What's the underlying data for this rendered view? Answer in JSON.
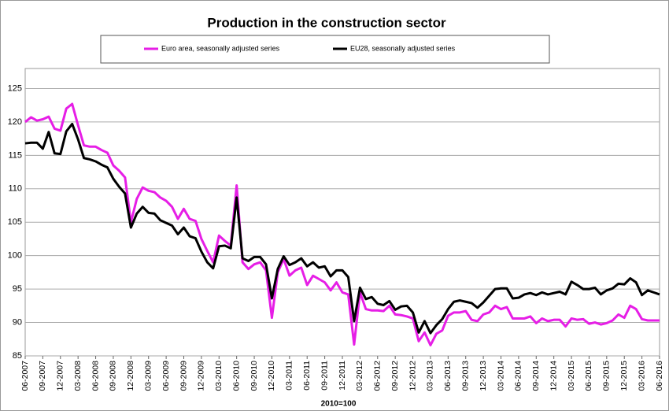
{
  "chart_data": {
    "type": "line",
    "title": "Production in the construction sector",
    "x_label": "2010=100",
    "categories": [
      "06-2007",
      null,
      null,
      "09-2007",
      null,
      null,
      "12-2007",
      null,
      null,
      "03-2008",
      null,
      null,
      "06-2008",
      null,
      null,
      "09-2008",
      null,
      null,
      "12-2008",
      null,
      null,
      "03-2009",
      null,
      null,
      "06-2009",
      null,
      null,
      "09-2009",
      null,
      null,
      "12-2009",
      null,
      null,
      "03-2010",
      null,
      null,
      "06-2010",
      null,
      null,
      "09-2010",
      null,
      null,
      "12-2010",
      null,
      null,
      "03-2011",
      null,
      null,
      "06-2011",
      null,
      null,
      "09-2011",
      null,
      null,
      "12-2011",
      null,
      null,
      "03-2012",
      null,
      null,
      "06-2012",
      null,
      null,
      "09-2012",
      null,
      null,
      "12-2012",
      null,
      null,
      "03-2013",
      null,
      null,
      "06-2013",
      null,
      null,
      "09-2013",
      null,
      null,
      "12-2013",
      null,
      null,
      "03-2014",
      null,
      null,
      "06-2014",
      null,
      null,
      "09-2014",
      null,
      null,
      "12-2014",
      null,
      null,
      "03-2015",
      null,
      null,
      "06-2015",
      null,
      null,
      "09-2015",
      null,
      null,
      "12-2015",
      null,
      null,
      "03-2016",
      null,
      null,
      "06-2016"
    ],
    "series": [
      {
        "name": "Euro area, seasonally adjusted series",
        "color": "#e61ee6",
        "values": [
          120.0,
          120.7,
          120.2,
          120.4,
          120.8,
          119.0,
          118.7,
          122.0,
          122.7,
          119.5,
          116.5,
          116.3,
          116.3,
          115.8,
          115.4,
          113.5,
          112.7,
          111.7,
          105.0,
          108.5,
          110.2,
          109.7,
          109.5,
          108.7,
          108.2,
          107.3,
          105.5,
          107.0,
          105.5,
          105.2,
          102.5,
          100.7,
          99.0,
          103.0,
          102.2,
          101.5,
          110.5,
          99.0,
          98.0,
          98.7,
          99.0,
          97.8,
          90.7,
          97.5,
          99.5,
          97.0,
          97.8,
          98.2,
          95.6,
          97.0,
          96.5,
          96.0,
          94.8,
          96.0,
          94.5,
          94.2,
          86.7,
          94.5,
          92.0,
          91.8,
          91.8,
          91.7,
          92.5,
          91.2,
          91.1,
          90.9,
          90.6,
          87.2,
          88.5,
          86.6,
          88.3,
          88.8,
          91.0,
          91.5,
          91.5,
          91.7,
          90.4,
          90.2,
          91.2,
          91.5,
          92.5,
          92.0,
          92.3,
          90.6,
          90.6,
          90.6,
          90.9,
          89.9,
          90.6,
          90.2,
          90.4,
          90.4,
          89.4,
          90.6,
          90.4,
          90.5,
          89.8,
          90.0,
          89.7,
          89.9,
          90.3,
          91.2,
          90.7,
          92.5,
          92.0,
          90.5,
          90.3,
          90.3,
          90.3
        ]
      },
      {
        "name": "EU28, seasonally adjusted series",
        "color": "#000000",
        "values": [
          116.8,
          116.9,
          116.9,
          116.0,
          118.5,
          115.3,
          115.2,
          118.6,
          119.7,
          117.4,
          114.6,
          114.4,
          114.1,
          113.6,
          113.2,
          111.5,
          110.3,
          109.3,
          104.2,
          106.3,
          107.3,
          106.4,
          106.3,
          105.3,
          104.9,
          104.5,
          103.2,
          104.2,
          102.9,
          102.6,
          100.6,
          99.0,
          98.1,
          101.4,
          101.5,
          101.1,
          108.7,
          99.6,
          99.2,
          99.8,
          99.8,
          98.7,
          93.6,
          98.0,
          99.9,
          98.6,
          99.0,
          99.6,
          98.4,
          99.0,
          98.2,
          98.4,
          96.9,
          97.8,
          97.8,
          96.8,
          90.2,
          95.2,
          93.5,
          93.8,
          92.8,
          92.6,
          93.2,
          91.9,
          92.4,
          92.5,
          91.5,
          88.5,
          90.2,
          88.4,
          89.6,
          90.5,
          92.0,
          93.1,
          93.3,
          93.1,
          92.9,
          92.2,
          93.0,
          94.0,
          95.0,
          95.1,
          95.1,
          93.6,
          93.7,
          94.2,
          94.4,
          94.1,
          94.5,
          94.2,
          94.4,
          94.6,
          94.2,
          96.1,
          95.6,
          95.0,
          95.0,
          95.2,
          94.2,
          94.8,
          95.1,
          95.8,
          95.7,
          96.6,
          96.0,
          94.1,
          94.8,
          94.5,
          94.2
        ]
      }
    ],
    "ylim": [
      85,
      128
    ],
    "yticks": [
      85,
      90,
      95,
      100,
      105,
      110,
      115,
      120,
      125
    ],
    "grid": true
  }
}
